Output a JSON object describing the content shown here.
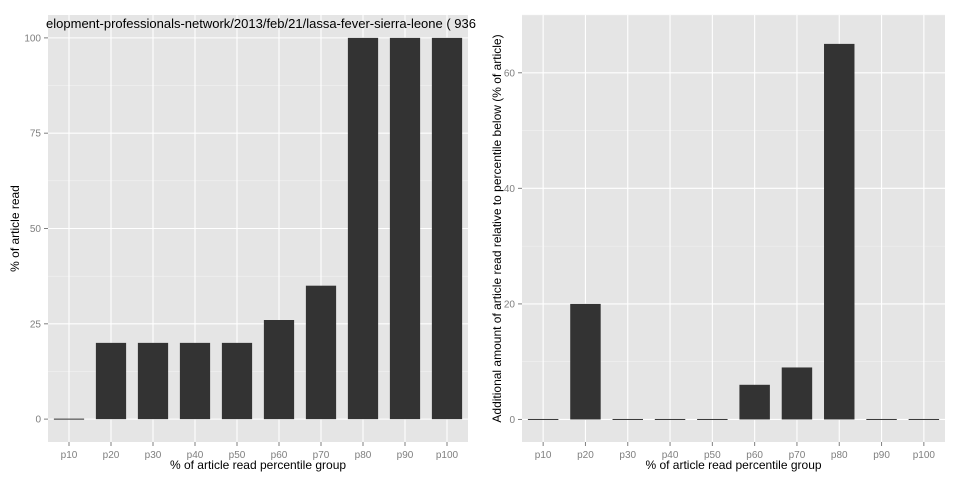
{
  "chart_data": [
    {
      "type": "bar",
      "title": "elopment-professionals-network/2013/feb/21/lassa-fever-sierra-leone ( 936",
      "xlabel": "% of article read percentile group",
      "ylabel": "% of article read",
      "categories": [
        "p10",
        "p20",
        "p30",
        "p40",
        "p50",
        "p60",
        "p70",
        "p80",
        "p90",
        "p100"
      ],
      "values": [
        0,
        20,
        20,
        20,
        20,
        26,
        35,
        100,
        100,
        100
      ],
      "ylim": [
        -6,
        106
      ],
      "yticks": [
        0,
        25,
        50,
        75,
        100
      ],
      "grid": true,
      "bar_color": "#333333",
      "panel_color": "#e5e5e5",
      "grid_color": "#ffffff"
    },
    {
      "type": "bar",
      "title": "",
      "xlabel": "% of article read percentile group",
      "ylabel": "Additional amount of article read relative to percentile below (% of article)",
      "categories": [
        "p10",
        "p20",
        "p30",
        "p40",
        "p50",
        "p60",
        "p70",
        "p80",
        "p90",
        "p100"
      ],
      "values": [
        0,
        20,
        0,
        0,
        0,
        6,
        9,
        65,
        0,
        0
      ],
      "ylim": [
        -3.9,
        70
      ],
      "yticks": [
        0,
        20,
        40,
        60
      ],
      "grid": true,
      "bar_color": "#333333",
      "panel_color": "#e5e5e5",
      "grid_color": "#ffffff"
    }
  ]
}
